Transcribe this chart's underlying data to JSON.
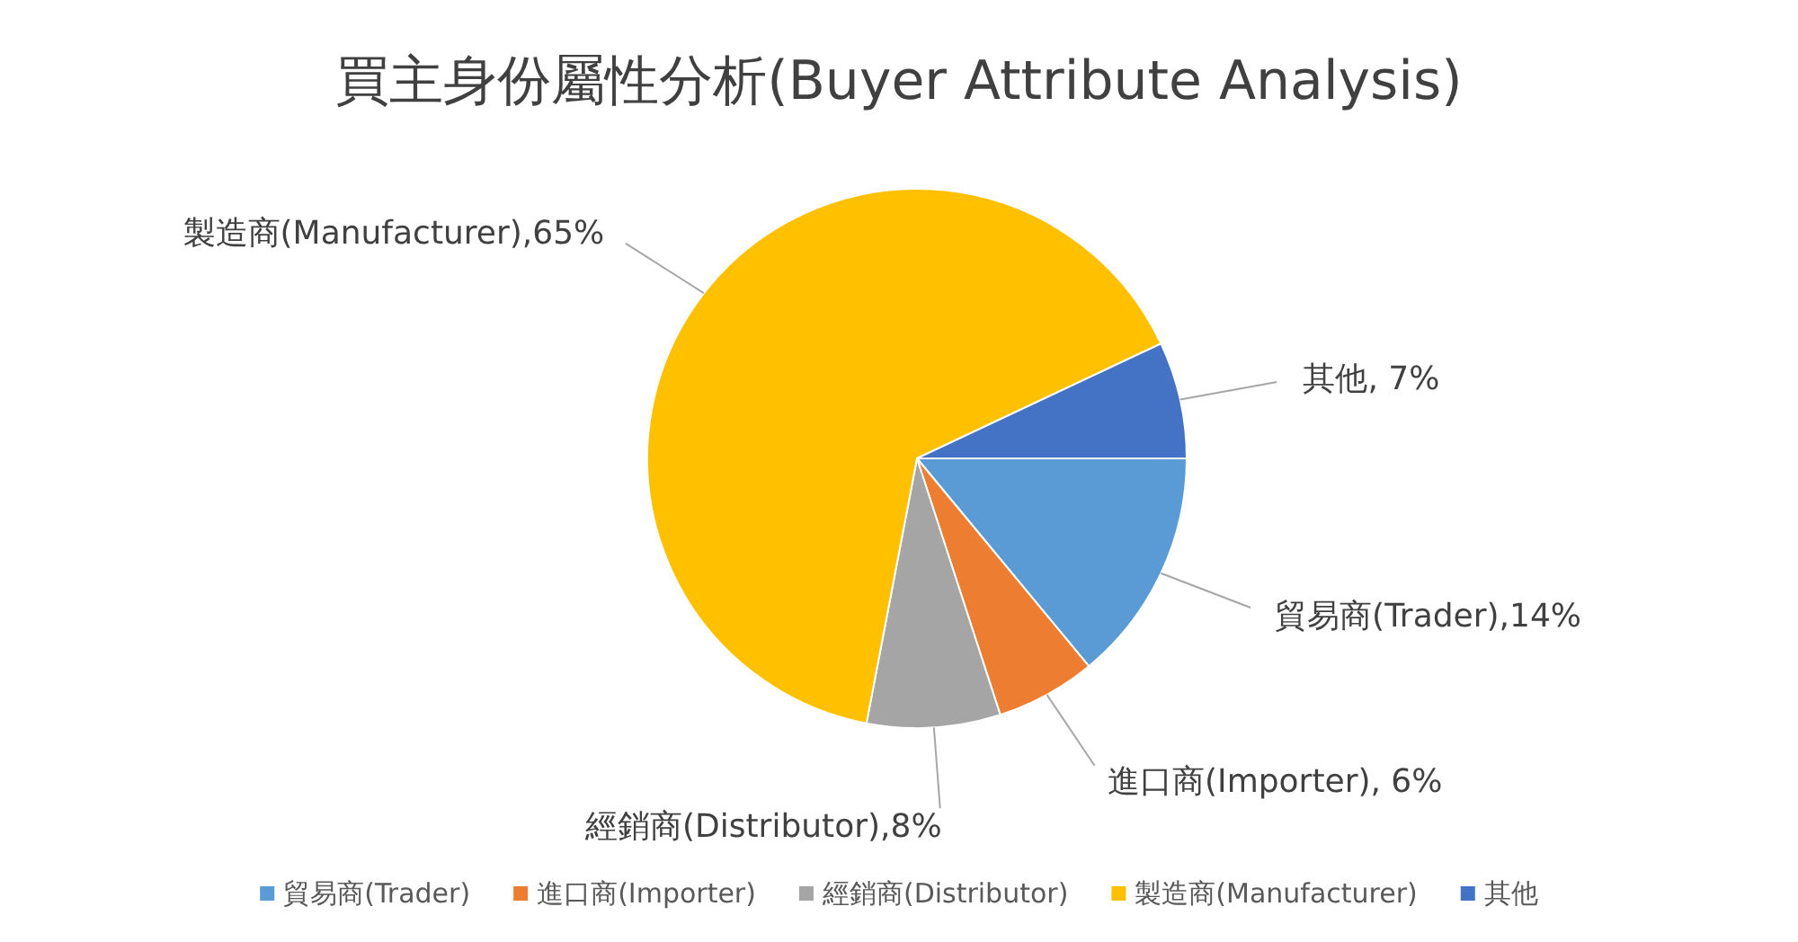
{
  "chart_data": {
    "type": "pie",
    "title": "買主身份屬性分析(Buyer Attribute Analysis)",
    "categories": [
      "貿易商(Trader)",
      "進口商(Importer)",
      "經銷商(Distributor)",
      "製造商(Manufacturer)",
      "其他"
    ],
    "values": [
      14,
      6,
      8,
      65,
      7
    ],
    "colors": [
      "#5b9bd5",
      "#ed7d31",
      "#a5a5a5",
      "#ffc000",
      "#4472c4"
    ],
    "value_labels": [
      "貿易商(Trader),14%",
      "進口商(Importer), 6%",
      "經銷商(Distributor),8%",
      "製造商(Manufacturer),65%",
      "其他, 7%"
    ],
    "legend": "bottom"
  }
}
